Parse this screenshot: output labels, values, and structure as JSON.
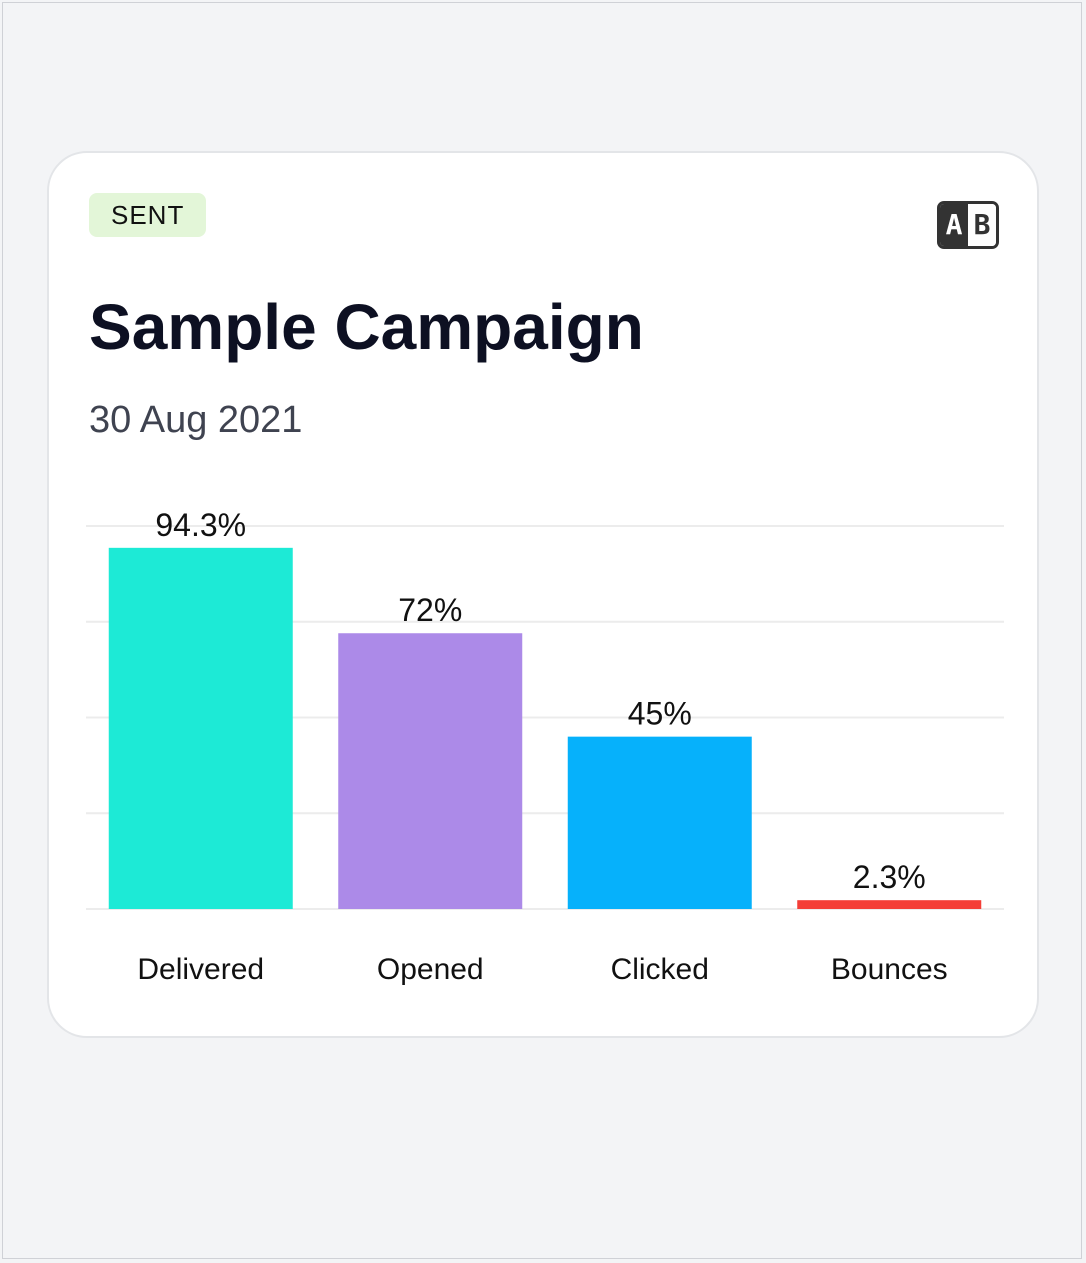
{
  "card": {
    "status": "SENT",
    "ab_icon": {
      "name": "ab-test-icon",
      "left": "A",
      "right": "B"
    },
    "title": "Sample Campaign",
    "date": "30 Aug 2021"
  },
  "chart_data": {
    "type": "bar",
    "categories": [
      "Delivered",
      "Opened",
      "Clicked",
      "Bounces"
    ],
    "values": [
      94.3,
      72,
      45,
      2.3
    ],
    "value_labels": [
      "94.3%",
      "72%",
      "45%",
      "2.3%"
    ],
    "colors": [
      "#1dead6",
      "#ac8ae8",
      "#06b1fb",
      "#f43e37"
    ],
    "ylim": [
      0,
      100
    ],
    "grid": true,
    "unit": "%"
  }
}
